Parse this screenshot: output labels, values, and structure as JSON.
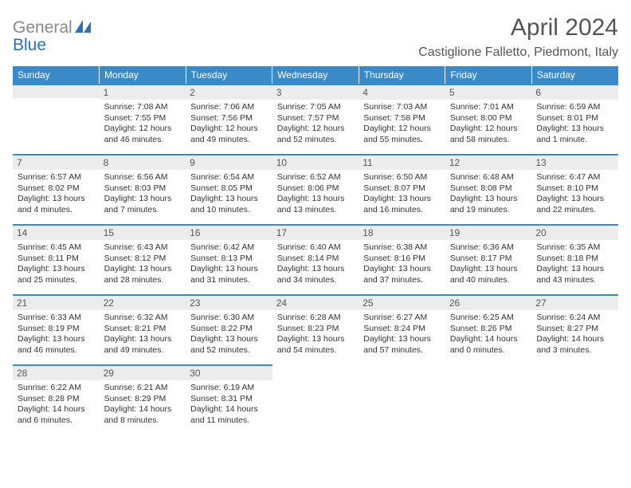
{
  "brand": {
    "text_gray": "General",
    "text_blue": "Blue",
    "gray_color": "#888888",
    "blue_color": "#2f6fb3"
  },
  "title": "April 2024",
  "location": "Castiglione Falletto, Piedmont, Italy",
  "header_bg": "#3a8ac9",
  "daynum_bg": "#ececec",
  "text_color": "#333333",
  "daynames": [
    "Sunday",
    "Monday",
    "Tuesday",
    "Wednesday",
    "Thursday",
    "Friday",
    "Saturday"
  ],
  "weeks": [
    [
      null,
      {
        "n": "1",
        "sr": "7:08 AM",
        "ss": "7:55 PM",
        "dl": "12 hours and 46 minutes."
      },
      {
        "n": "2",
        "sr": "7:06 AM",
        "ss": "7:56 PM",
        "dl": "12 hours and 49 minutes."
      },
      {
        "n": "3",
        "sr": "7:05 AM",
        "ss": "7:57 PM",
        "dl": "12 hours and 52 minutes."
      },
      {
        "n": "4",
        "sr": "7:03 AM",
        "ss": "7:58 PM",
        "dl": "12 hours and 55 minutes."
      },
      {
        "n": "5",
        "sr": "7:01 AM",
        "ss": "8:00 PM",
        "dl": "12 hours and 58 minutes."
      },
      {
        "n": "6",
        "sr": "6:59 AM",
        "ss": "8:01 PM",
        "dl": "13 hours and 1 minute."
      }
    ],
    [
      {
        "n": "7",
        "sr": "6:57 AM",
        "ss": "8:02 PM",
        "dl": "13 hours and 4 minutes."
      },
      {
        "n": "8",
        "sr": "6:56 AM",
        "ss": "8:03 PM",
        "dl": "13 hours and 7 minutes."
      },
      {
        "n": "9",
        "sr": "6:54 AM",
        "ss": "8:05 PM",
        "dl": "13 hours and 10 minutes."
      },
      {
        "n": "10",
        "sr": "6:52 AM",
        "ss": "8:06 PM",
        "dl": "13 hours and 13 minutes."
      },
      {
        "n": "11",
        "sr": "6:50 AM",
        "ss": "8:07 PM",
        "dl": "13 hours and 16 minutes."
      },
      {
        "n": "12",
        "sr": "6:48 AM",
        "ss": "8:08 PM",
        "dl": "13 hours and 19 minutes."
      },
      {
        "n": "13",
        "sr": "6:47 AM",
        "ss": "8:10 PM",
        "dl": "13 hours and 22 minutes."
      }
    ],
    [
      {
        "n": "14",
        "sr": "6:45 AM",
        "ss": "8:11 PM",
        "dl": "13 hours and 25 minutes."
      },
      {
        "n": "15",
        "sr": "6:43 AM",
        "ss": "8:12 PM",
        "dl": "13 hours and 28 minutes."
      },
      {
        "n": "16",
        "sr": "6:42 AM",
        "ss": "8:13 PM",
        "dl": "13 hours and 31 minutes."
      },
      {
        "n": "17",
        "sr": "6:40 AM",
        "ss": "8:14 PM",
        "dl": "13 hours and 34 minutes."
      },
      {
        "n": "18",
        "sr": "6:38 AM",
        "ss": "8:16 PM",
        "dl": "13 hours and 37 minutes."
      },
      {
        "n": "19",
        "sr": "6:36 AM",
        "ss": "8:17 PM",
        "dl": "13 hours and 40 minutes."
      },
      {
        "n": "20",
        "sr": "6:35 AM",
        "ss": "8:18 PM",
        "dl": "13 hours and 43 minutes."
      }
    ],
    [
      {
        "n": "21",
        "sr": "6:33 AM",
        "ss": "8:19 PM",
        "dl": "13 hours and 46 minutes."
      },
      {
        "n": "22",
        "sr": "6:32 AM",
        "ss": "8:21 PM",
        "dl": "13 hours and 49 minutes."
      },
      {
        "n": "23",
        "sr": "6:30 AM",
        "ss": "8:22 PM",
        "dl": "13 hours and 52 minutes."
      },
      {
        "n": "24",
        "sr": "6:28 AM",
        "ss": "8:23 PM",
        "dl": "13 hours and 54 minutes."
      },
      {
        "n": "25",
        "sr": "6:27 AM",
        "ss": "8:24 PM",
        "dl": "13 hours and 57 minutes."
      },
      {
        "n": "26",
        "sr": "6:25 AM",
        "ss": "8:26 PM",
        "dl": "14 hours and 0 minutes."
      },
      {
        "n": "27",
        "sr": "6:24 AM",
        "ss": "8:27 PM",
        "dl": "14 hours and 3 minutes."
      }
    ],
    [
      {
        "n": "28",
        "sr": "6:22 AM",
        "ss": "8:28 PM",
        "dl": "14 hours and 6 minutes."
      },
      {
        "n": "29",
        "sr": "6:21 AM",
        "ss": "8:29 PM",
        "dl": "14 hours and 8 minutes."
      },
      {
        "n": "30",
        "sr": "6:19 AM",
        "ss": "8:31 PM",
        "dl": "14 hours and 11 minutes."
      },
      null,
      null,
      null,
      null
    ]
  ],
  "labels": {
    "sunrise": "Sunrise:",
    "sunset": "Sunset:",
    "daylight": "Daylight:"
  }
}
